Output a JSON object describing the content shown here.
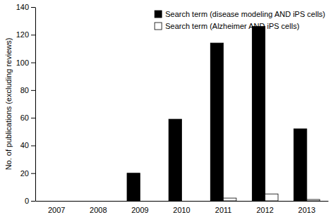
{
  "chart_data": {
    "type": "bar",
    "y_label": "No. of publications (excluding reviews)",
    "categories": [
      "2007",
      "2008",
      "2009",
      "2010",
      "2011",
      "2012",
      "2013"
    ],
    "series": [
      {
        "name": "Search term (disease modeling AND iPS cells)",
        "color": "#000000",
        "values": [
          0,
          0,
          20,
          59,
          114,
          126,
          52
        ]
      },
      {
        "name": "Search term (Alzheimer AND iPS cells)",
        "color": "#ffffff",
        "values": [
          0,
          0,
          0,
          0,
          2,
          5,
          1
        ]
      }
    ],
    "ylim": [
      0,
      140
    ],
    "yticks": [
      0,
      20,
      40,
      60,
      80,
      100,
      120,
      140
    ],
    "grid": false,
    "legend": "top-right"
  }
}
